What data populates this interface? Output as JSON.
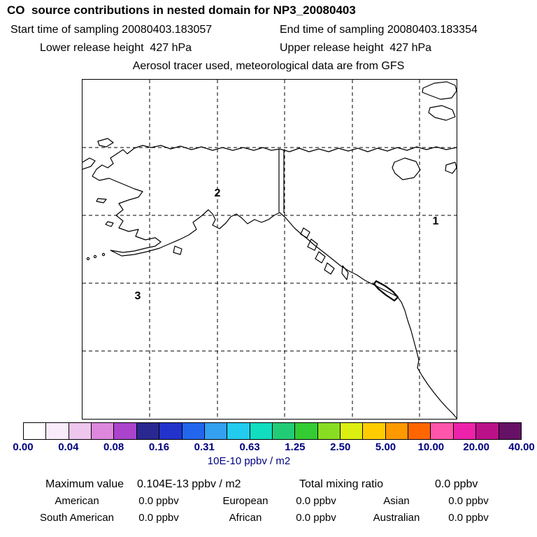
{
  "header": {
    "title": "CO  source contributions in nested domain for NP3_20080403",
    "start_time": "Start time of sampling 20080403.183057",
    "end_time": "End time of sampling 20080403.183354",
    "lower_release": "Lower release height  427 hPa",
    "upper_release": "Upper release height  427 hPa",
    "tracer_line": "Aerosol tracer used, meteorological data are from GFS"
  },
  "map": {
    "markers": [
      {
        "label": "1"
      },
      {
        "label": "2"
      },
      {
        "label": "3"
      }
    ]
  },
  "colorbar": {
    "ticks": [
      "0.00",
      "0.04",
      "0.08",
      "0.16",
      "0.31",
      "0.63",
      "1.25",
      "2.50",
      "5.00",
      "10.00",
      "20.00",
      "40.00"
    ],
    "unit": "10E-10 ppbv / m2",
    "colors": [
      "#ffffff",
      "#f9ebf9",
      "#eec6ee",
      "#dd88dd",
      "#aa44cc",
      "#282890",
      "#2233cc",
      "#2266ee",
      "#33a0f0",
      "#22ccee",
      "#11ddc0",
      "#22cc77",
      "#33cc33",
      "#88dd22",
      "#ddee11",
      "#ffcc00",
      "#ff9900",
      "#ff6600",
      "#ff55aa",
      "#ee22aa",
      "#bb1188",
      "#661166"
    ]
  },
  "stats": {
    "max_label": "Maximum value",
    "max_value": "0.104E-13 ppbv / m2",
    "total_label": "Total mixing ratio",
    "total_value": "0.0 ppbv",
    "regions": [
      {
        "label": "American",
        "value": "0.0 ppbv"
      },
      {
        "label": "European",
        "value": "0.0 ppbv"
      },
      {
        "label": "Asian",
        "value": "0.0 ppbv"
      },
      {
        "label": "South American",
        "value": "0.0 ppbv"
      },
      {
        "label": "African",
        "value": "0.0 ppbv"
      },
      {
        "label": "Australian",
        "value": "0.0 ppbv"
      }
    ]
  },
  "colors": {
    "tick_text": "#000080",
    "body_text": "#000000",
    "map_lines": "#000000"
  },
  "chart_data": {
    "type": "heatmap",
    "title": "CO source contributions in nested domain for NP3_20080403",
    "subtitle": "Aerosol tracer used, meteorological data are from GFS",
    "sampling_start": "20080403.183057",
    "sampling_end": "20080403.183354",
    "release_height_hPa": {
      "lower": 427,
      "upper": 427
    },
    "colorbar_ticks": [
      0.0,
      0.04,
      0.08,
      0.16,
      0.31,
      0.63,
      1.25,
      2.5,
      5.0,
      10.0,
      20.0,
      40.0
    ],
    "colorbar_unit": "10E-10 ppbv / m2",
    "maximum_value": "0.104E-13 ppbv / m2",
    "total_mixing_ratio_ppbv": 0.0,
    "region_contributions_ppbv": {
      "American": 0.0,
      "European": 0.0,
      "Asian": 0.0,
      "South American": 0.0,
      "African": 0.0,
      "Australian": 0.0
    },
    "map_markers": [
      "1",
      "2",
      "3"
    ],
    "map_region": "North Pacific / Alaska / western North America with dashed lat-lon gridlines",
    "legend_position": "bottom"
  }
}
